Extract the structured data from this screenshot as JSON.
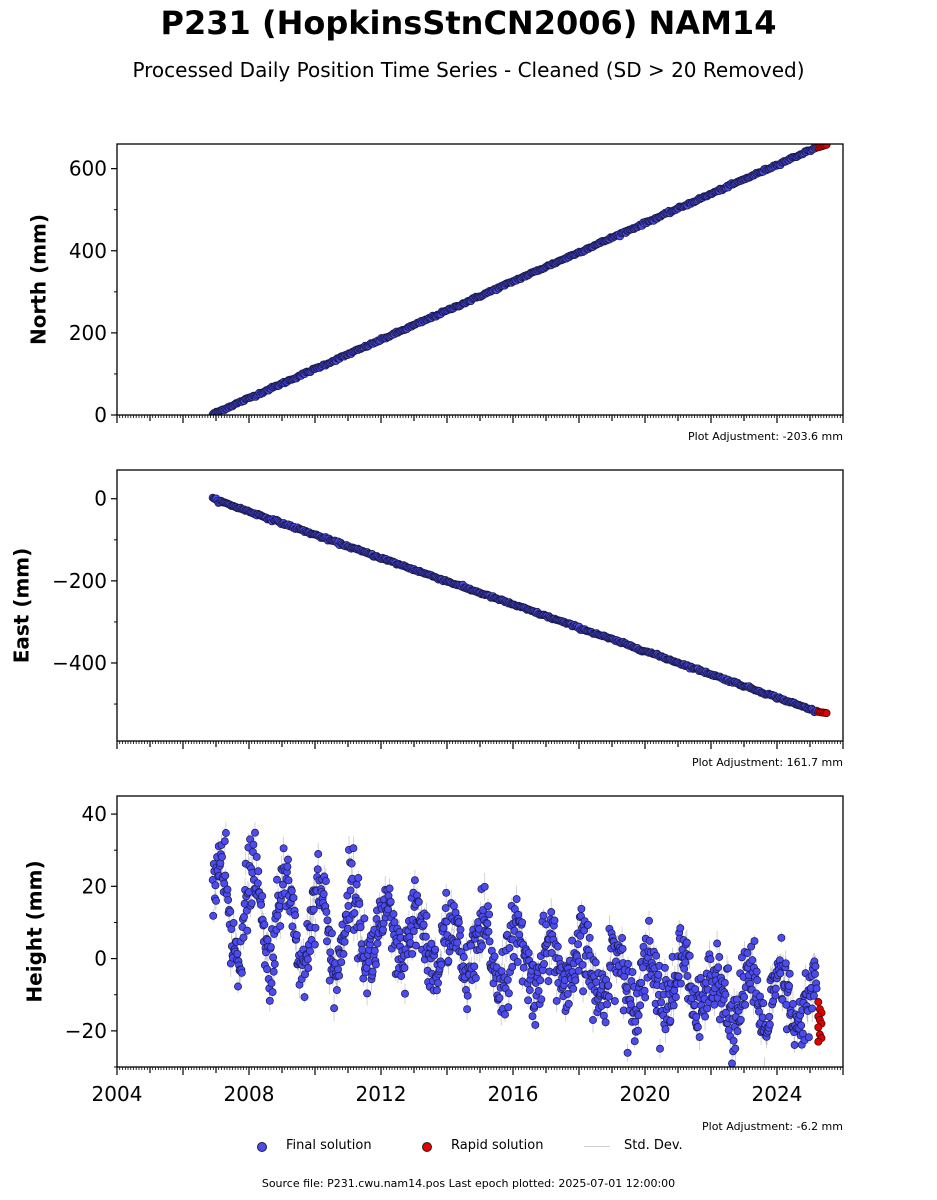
{
  "title": "P231 (HopkinsStnCN2006) NAM14",
  "subtitle": "Processed Daily Position Time Series - Cleaned (SD > 20 Removed)",
  "source_text": "Source file: P231.cwu.nam14.pos  Last epoch plotted: 2025-07-01 12:00:00",
  "legend": [
    {
      "label": "Final solution",
      "color": "#4b4bf0"
    },
    {
      "label": "Rapid solution",
      "color": "#e00000"
    },
    {
      "label": "Std. Dev.",
      "color": "#cfcfcf"
    }
  ],
  "chart_data": [
    {
      "type": "scatter",
      "panel": "north",
      "ylabel": "North (mm)",
      "adjustment_text": "Plot Adjustment: -203.6 mm",
      "xlim": [
        2004.0,
        2026.0
      ],
      "ylim": [
        0,
        660
      ],
      "yticks": [
        0,
        200,
        400,
        600
      ],
      "xtick_labels_shown": false,
      "series": [
        {
          "name": "Final solution",
          "x_start": 2006.9,
          "x_end": 2025.2,
          "y_start": 2,
          "y_end": 652,
          "noise": 1.5
        },
        {
          "name": "Rapid solution",
          "x_start": 2025.25,
          "x_end": 2025.5,
          "y_start": 652,
          "y_end": 658,
          "noise": 1.0
        }
      ]
    },
    {
      "type": "scatter",
      "panel": "east",
      "ylabel": "East (mm)",
      "adjustment_text": "Plot Adjustment: 161.7 mm",
      "xlim": [
        2004.0,
        2026.0
      ],
      "ylim": [
        -590,
        70
      ],
      "yticks": [
        0,
        -200,
        -400
      ],
      "ytick_labels": [
        "0",
        "−200",
        "−400"
      ],
      "xtick_labels_shown": false,
      "series": [
        {
          "name": "Final solution",
          "x_start": 2006.9,
          "x_end": 2025.2,
          "y_start": 0,
          "y_end": -518,
          "noise": 1.5
        },
        {
          "name": "Rapid solution",
          "x_start": 2025.25,
          "x_end": 2025.5,
          "y_start": -519,
          "y_end": -522,
          "noise": 1.0
        }
      ]
    },
    {
      "type": "scatter",
      "panel": "height",
      "ylabel": "Height (mm)",
      "adjustment_text": "Plot Adjustment: -6.2 mm",
      "xlim": [
        2004.0,
        2026.0
      ],
      "ylim": [
        -30,
        45
      ],
      "yticks": [
        -20,
        0,
        20,
        40
      ],
      "ytick_labels": [
        "−20",
        "0",
        "20",
        "40"
      ],
      "xticks": [
        2004,
        2008,
        2012,
        2016,
        2020,
        2024
      ],
      "xtick_labels": [
        "2004",
        "2008",
        "2012",
        "2016",
        "2020",
        "2024"
      ],
      "xtick_labels_shown": true,
      "series": [
        {
          "name": "Final solution",
          "x_start": 2006.9,
          "x_end": 2025.2,
          "trend_start": 14,
          "trend_end": -14,
          "seasonal_amplitude": 9,
          "noise": 5
        },
        {
          "name": "Rapid solution",
          "x_start": 2025.25,
          "x_end": 2025.5,
          "y_values": [
            -12,
            -14,
            -15,
            -16,
            -17,
            -18,
            -19,
            -21,
            -22,
            -23
          ]
        }
      ]
    }
  ]
}
